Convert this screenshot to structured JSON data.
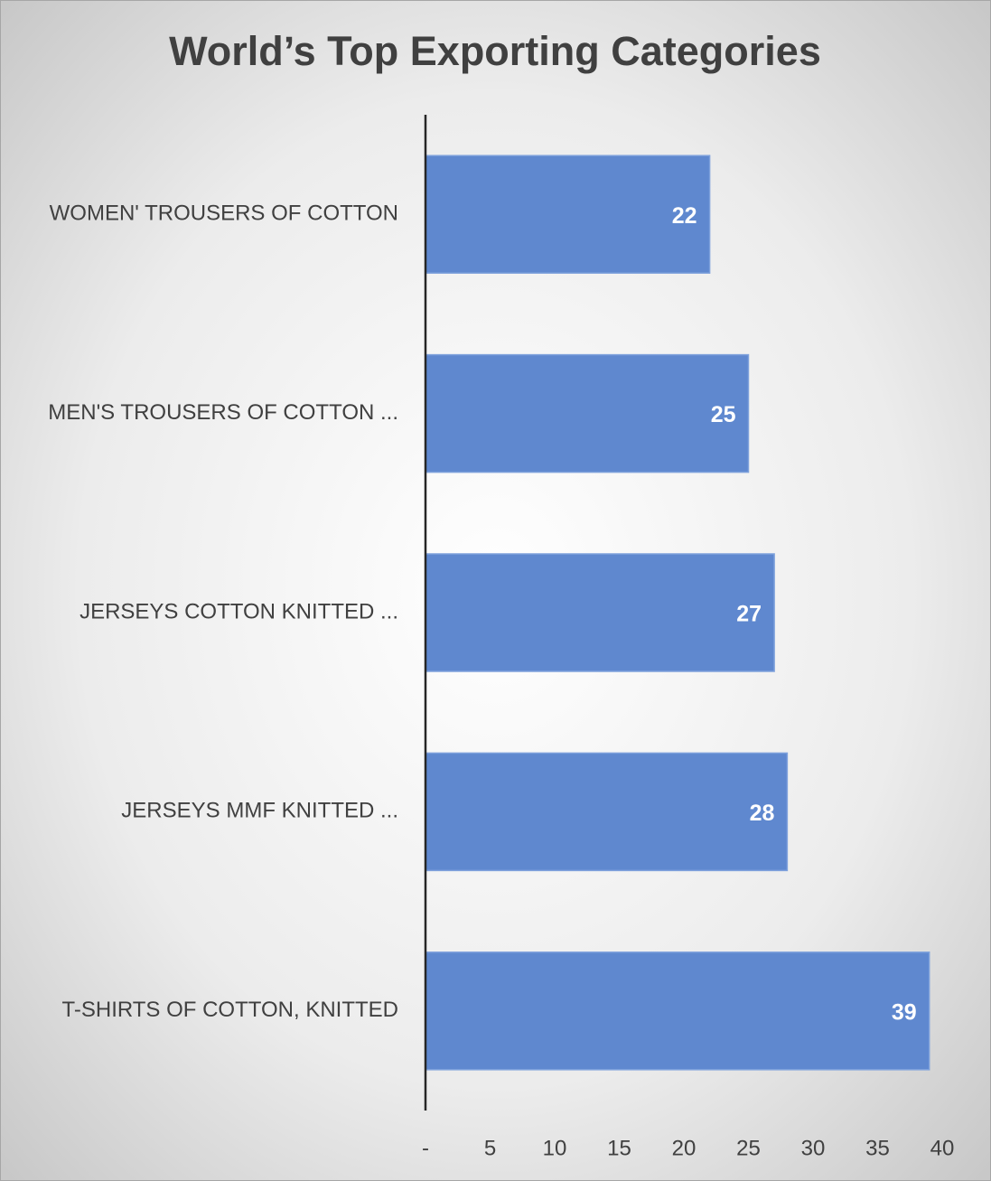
{
  "chart_data": {
    "type": "bar",
    "orientation": "horizontal",
    "title": "World’s Top Exporting Categories",
    "categories": [
      "WOMEN' TROUSERS OF COTTON",
      "MEN'S TROUSERS OF COTTON ...",
      "JERSEYS COTTON KNITTED ...",
      "JERSEYS MMF KNITTED ...",
      "T-SHIRTS OF COTTON, KNITTED"
    ],
    "values": [
      22,
      25,
      27,
      28,
      39
    ],
    "color": "#5f88cf",
    "xlim": [
      0,
      40
    ],
    "xticks": [
      {
        "value": 0,
        "label": "-"
      },
      5,
      10,
      15,
      20,
      25,
      30,
      35,
      40
    ],
    "grid": false
  }
}
